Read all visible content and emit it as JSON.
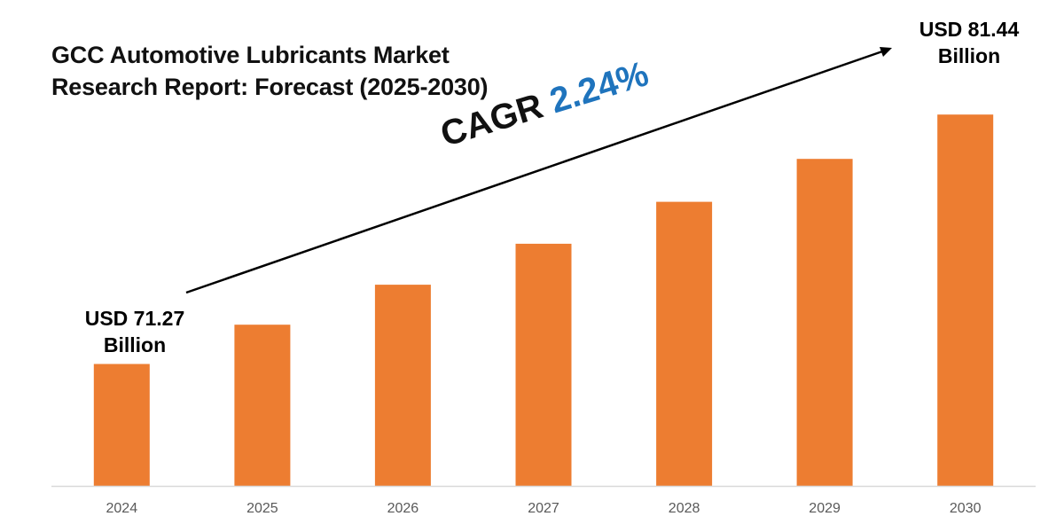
{
  "chart_data": {
    "type": "bar",
    "title_lines": [
      "GCC Automotive Lubricants Market",
      "Research Report: Forecast (2025-2030)"
    ],
    "categories": [
      "2024",
      "2025",
      "2026",
      "2027",
      "2028",
      "2029",
      "2030"
    ],
    "values": [
      71.27,
      72.87,
      74.5,
      76.17,
      77.88,
      79.63,
      81.44
    ],
    "unit": "USD Billion",
    "ylim": [
      66.3,
      83
    ],
    "grid": false,
    "bar_color": "#ed7d31",
    "axis_color": "#d9d9d9",
    "tick_color": "#595959",
    "callouts": {
      "start": {
        "line1": "USD 71.27",
        "line2": "Billion"
      },
      "end": {
        "line1": "USD 81.44",
        "line2": "Billion"
      }
    },
    "cagr": {
      "label": "CAGR",
      "value": "2.24%",
      "value_color": "#1f74bd"
    }
  }
}
